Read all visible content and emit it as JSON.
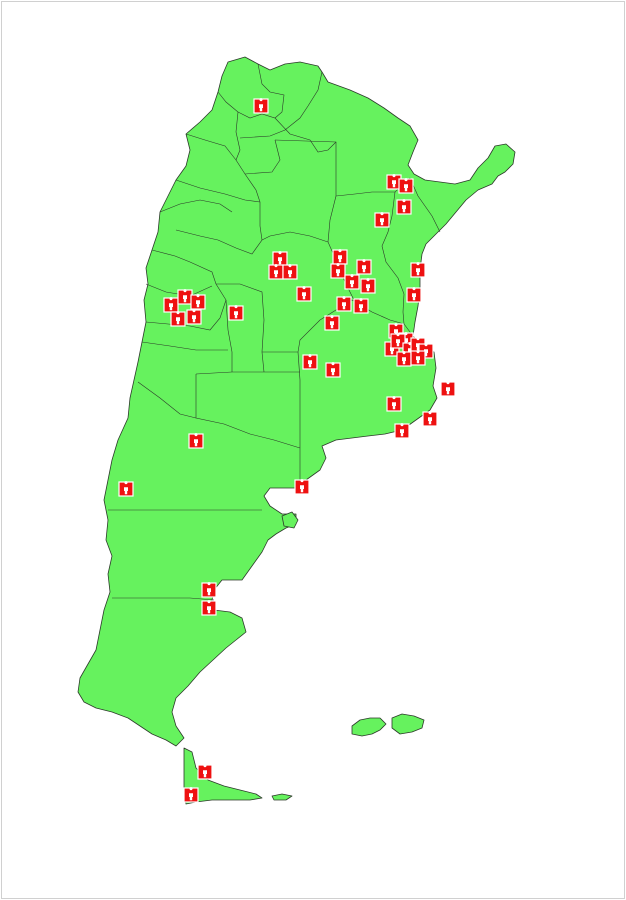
{
  "map": {
    "country": "Argentina",
    "fill_color": "#66f25e",
    "border_color": "#2c3a2a",
    "background": "#ffffff"
  },
  "marker": {
    "icon": "person-icon",
    "color": "#ee1111",
    "count": 57
  }
}
